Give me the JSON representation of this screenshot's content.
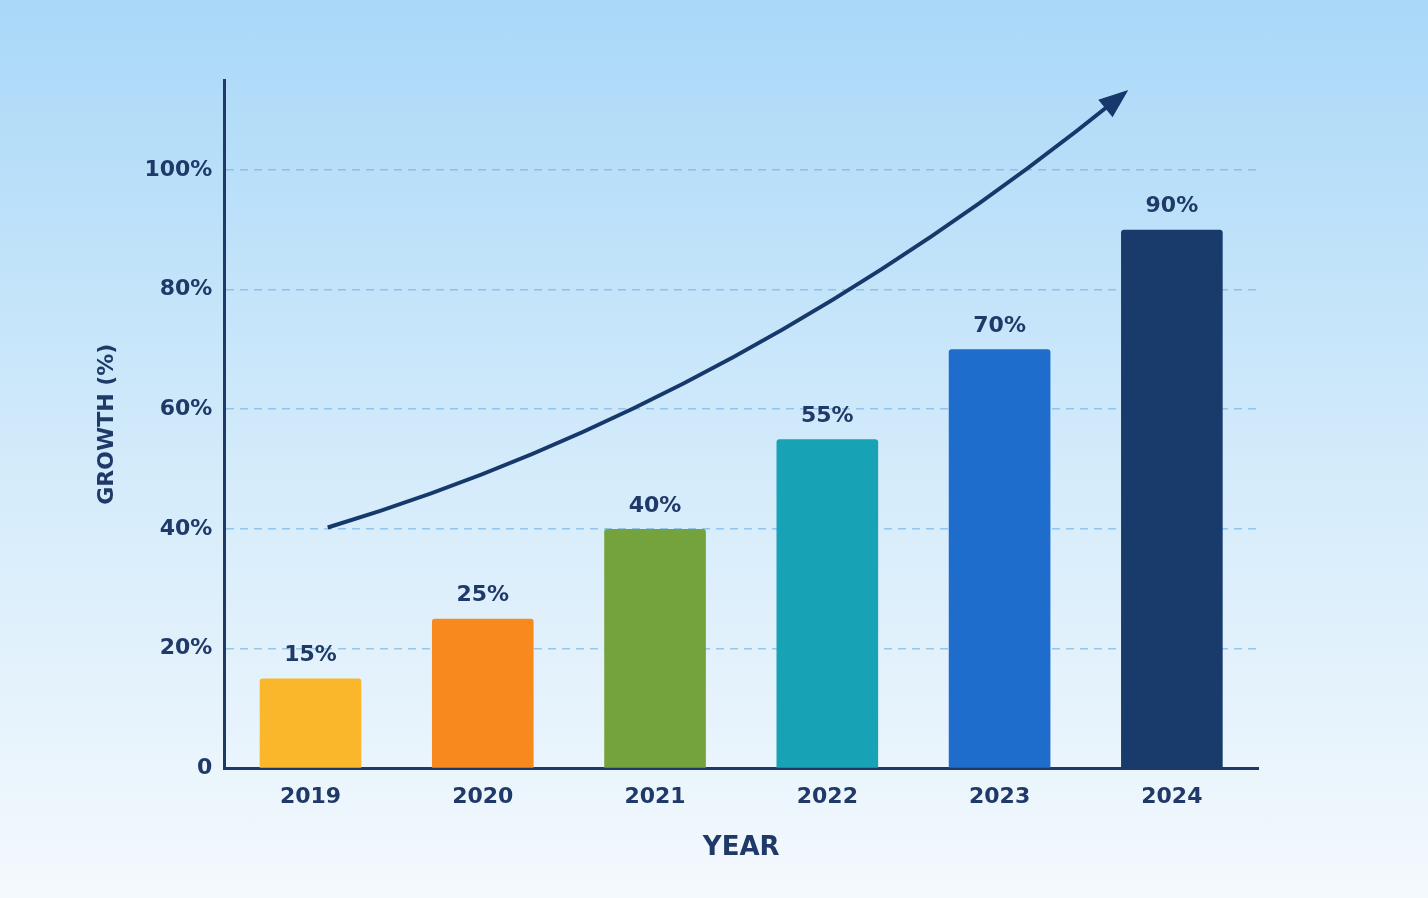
{
  "chart_data": {
    "type": "bar",
    "categories": [
      "2019",
      "2020",
      "2021",
      "2022",
      "2023",
      "2024"
    ],
    "values": [
      15,
      25,
      40,
      55,
      70,
      90
    ],
    "value_labels": [
      "15%",
      "25%",
      "40%",
      "55%",
      "70%",
      "90%"
    ],
    "data_labels": true,
    "colors": [
      "#fbb72c",
      "#f7891e",
      "#74a23c",
      "#17a3b5",
      "#1e6ccc",
      "#183b6b"
    ],
    "x_label": "YEAR",
    "y_label": "GROWTH (%)",
    "ylim": [
      0,
      115
    ],
    "yticks": [
      0,
      {
        "value": 20,
        "label": "20%"
      },
      {
        "value": 40,
        "label": "40%"
      },
      {
        "value": 60,
        "label": "60%"
      },
      {
        "value": 80,
        "label": "80%"
      },
      {
        "value": 100,
        "label": "100%"
      }
    ],
    "grid": true
  }
}
